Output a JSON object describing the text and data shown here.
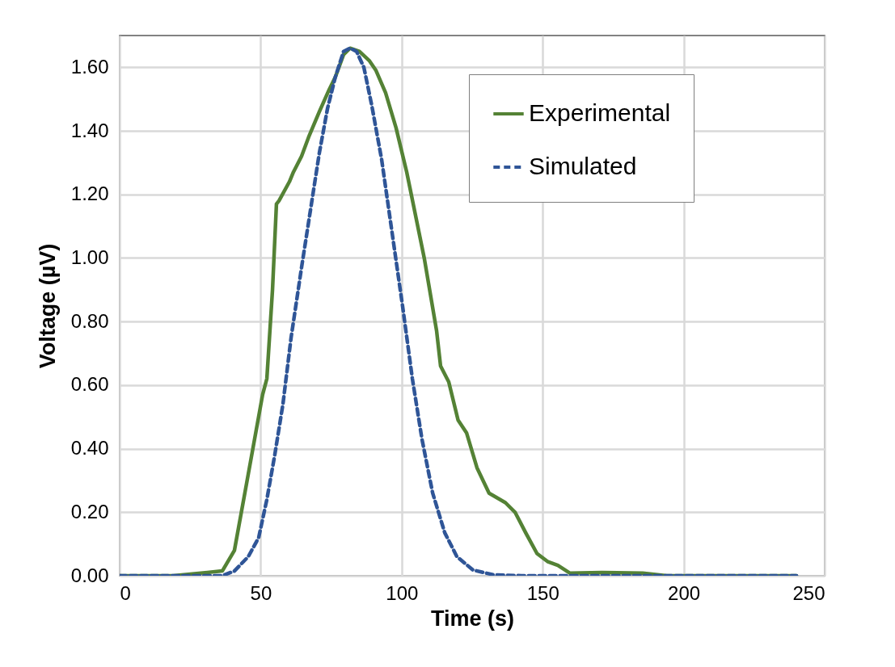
{
  "chart_data": {
    "type": "line",
    "xlabel": "Time (s)",
    "ylabel": "Voltage (µV)",
    "xlim": [
      0,
      250
    ],
    "xticks": [
      0,
      50,
      100,
      150,
      200,
      250
    ],
    "ylim": [
      0,
      1.7
    ],
    "yticks": [
      {
        "value": 0,
        "label": "0.00"
      },
      {
        "value": 0.2,
        "label": "0.20"
      },
      {
        "value": 0.4,
        "label": "0.40"
      },
      {
        "value": 0.6,
        "label": "0.60"
      },
      {
        "value": 0.8,
        "label": "0.80"
      },
      {
        "value": 1,
        "label": "1.00"
      },
      {
        "value": 1.2,
        "label": "1.20"
      },
      {
        "value": 1.4,
        "label": "1.40"
      },
      {
        "value": 1.6,
        "label": "1.60"
      }
    ],
    "grid": true,
    "legend": "top right",
    "series": [
      {
        "name": "Experimental",
        "color": "#548235",
        "line_style": "solid",
        "x": [
          0,
          19,
          36.4,
          40.7,
          45,
          50.7,
          52.2,
          54.2,
          55.6,
          56.5,
          60.2,
          61.6,
          64.5,
          67,
          70.8,
          74.3,
          76.5,
          79.4,
          81.7,
          85,
          88.6,
          90.9,
          94.3,
          98,
          101.8,
          108,
          112.4,
          113.8,
          116.7,
          120,
          123,
          126.7,
          131,
          136.8,
          140.2,
          144,
          148,
          151.7,
          155.4,
          159.7,
          171,
          185.5,
          194,
          240
        ],
        "values": [
          0,
          0,
          0.015,
          0.08,
          0.29,
          0.57,
          0.62,
          0.9,
          1.17,
          1.18,
          1.24,
          1.27,
          1.32,
          1.38,
          1.46,
          1.53,
          1.57,
          1.64,
          1.66,
          1.65,
          1.62,
          1.59,
          1.52,
          1.41,
          1.27,
          1,
          0.77,
          0.66,
          0.61,
          0.49,
          0.45,
          0.34,
          0.26,
          0.23,
          0.2,
          0.135,
          0.07,
          0.045,
          0.033,
          0.008,
          0.01,
          0.008,
          0,
          0
        ]
      },
      {
        "name": "Simulated",
        "color": "#2f5597",
        "line_style": "dashed",
        "x": [
          0,
          36.4,
          40.7,
          45.6,
          49.3,
          52.2,
          55,
          57.9,
          60.8,
          64.5,
          68,
          70.8,
          73.7,
          76.5,
          79.4,
          81.7,
          84,
          86.6,
          89.4,
          92.9,
          96.6,
          100.3,
          103.8,
          107.2,
          111,
          115.3,
          119.6,
          125.3,
          132.5,
          142.5,
          240
        ],
        "values": [
          0,
          0,
          0.015,
          0.06,
          0.12,
          0.24,
          0.38,
          0.54,
          0.75,
          0.97,
          1.17,
          1.33,
          1.47,
          1.57,
          1.65,
          1.66,
          1.65,
          1.6,
          1.48,
          1.31,
          1.08,
          0.85,
          0.62,
          0.43,
          0.26,
          0.135,
          0.06,
          0.018,
          0.003,
          0,
          0
        ]
      }
    ]
  }
}
